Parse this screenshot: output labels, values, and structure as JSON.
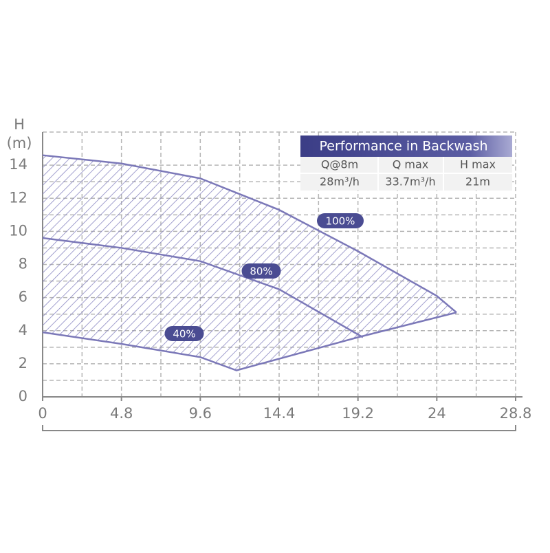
{
  "chart_data": {
    "type": "line",
    "ylabel": [
      "H",
      "(m)"
    ],
    "xlim": [
      0,
      28.8
    ],
    "xticks": [
      0,
      4.8,
      9.6,
      14.4,
      19.2,
      24,
      28.8
    ],
    "ylim": [
      0,
      16
    ],
    "yticks": [
      0,
      2,
      4,
      6,
      8,
      10,
      12,
      14
    ],
    "grid": true,
    "hatched": true,
    "series": [
      {
        "name": "100%",
        "color": "#7b78b8",
        "x": [
          0,
          4.8,
          9.6,
          14.4,
          19.2,
          24,
          25.2
        ],
        "values": [
          14.6,
          14.1,
          13.2,
          11.3,
          8.8,
          6.1,
          5.1
        ]
      },
      {
        "name": "80%",
        "color": "#7b78b8",
        "x": [
          0,
          4.8,
          9.6,
          14.4,
          19.5
        ],
        "values": [
          9.6,
          9.0,
          8.2,
          6.5,
          3.6
        ]
      },
      {
        "name": "40%",
        "color": "#7b78b8",
        "x": [
          0,
          4.8,
          9.6,
          11.8,
          19.2,
          25.2
        ],
        "values": [
          3.9,
          3.2,
          2.4,
          1.6,
          3.6,
          5.1
        ]
      }
    ]
  },
  "table": {
    "title": "Performance in Backwash",
    "headers": [
      "Q@8m",
      "Q max",
      "H max"
    ],
    "rows": [
      [
        "28m³/h",
        "33.7m³/h",
        "21m"
      ]
    ]
  }
}
